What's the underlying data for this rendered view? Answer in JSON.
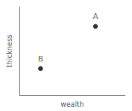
{
  "chart_data": {
    "type": "scatter",
    "xlabel": "wealth",
    "ylabel": "thickness",
    "x": [
      0.72,
      0.2
    ],
    "values": [
      0.78,
      0.3
    ],
    "labels": [
      "A",
      "B"
    ],
    "color": "#000000",
    "xlim": [
      0,
      1
    ],
    "ylim": [
      0,
      1
    ],
    "xticks": [],
    "yticks": [],
    "tick_labels": false,
    "grid": false
  }
}
